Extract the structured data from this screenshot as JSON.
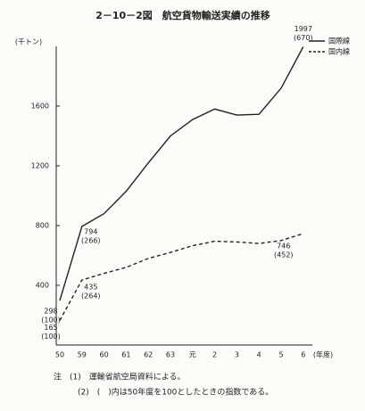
{
  "chart_data": {
    "type": "line",
    "title": "2－10－2図　航空貨物輸送実績の推移",
    "y_label": "(千トン)",
    "x_label": "(年度)",
    "categories": [
      "50",
      "59",
      "60",
      "61",
      "62",
      "63",
      "元",
      "2",
      "3",
      "4",
      "5",
      "6"
    ],
    "ylim": [
      0,
      2000
    ],
    "yticks": [
      400,
      800,
      1200,
      1600
    ],
    "legend": "top-right",
    "series": [
      {
        "name": "国際線",
        "color": "#222222",
        "dash": "solid",
        "values": [
          298,
          794,
          880,
          1030,
          1220,
          1400,
          1510,
          1580,
          1540,
          1545,
          1720,
          1997
        ],
        "value_labels": [
          "298",
          "794",
          null,
          null,
          null,
          null,
          null,
          null,
          null,
          null,
          null,
          "1997"
        ],
        "index_labels": [
          "(100)",
          "(266)",
          null,
          null,
          null,
          null,
          null,
          null,
          null,
          null,
          null,
          "(670)"
        ]
      },
      {
        "name": "国内線",
        "color": "#222222",
        "dash": "dashed",
        "values": [
          165,
          435,
          480,
          520,
          580,
          620,
          665,
          695,
          690,
          680,
          700,
          746
        ],
        "value_labels": [
          "165",
          "435",
          null,
          null,
          null,
          null,
          null,
          null,
          null,
          null,
          null,
          "746"
        ],
        "index_labels": [
          "(100)",
          "(264)",
          null,
          null,
          null,
          null,
          null,
          null,
          null,
          null,
          null,
          "(452)"
        ]
      }
    ]
  },
  "notes": [
    "注　(1)　運輸省航空局資料による。",
    "(2)　(　)内は50年度を100としたときの指数である。"
  ]
}
